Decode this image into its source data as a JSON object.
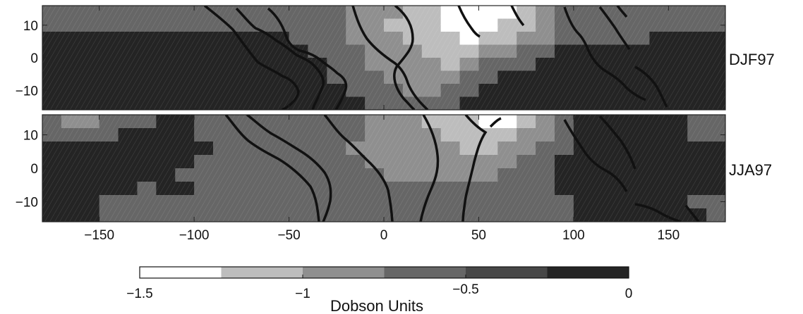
{
  "chart_data": {
    "type": "heatmap",
    "colorbar": {
      "label": "Dobson Units",
      "range": [
        -1.5,
        0
      ],
      "ticks": [
        -1.5,
        -1,
        -0.5,
        0
      ],
      "tick_labels": [
        "−1.5",
        "−1",
        "−0.5",
        "0"
      ],
      "levels": [
        -1.25,
        -1.0,
        -0.75,
        -0.5,
        -0.25
      ],
      "colors": [
        "#ffffff",
        "#bdbdbd",
        "#8f8f8f",
        "#666666",
        "#474747",
        "#242424"
      ]
    },
    "xlim": [
      -180,
      180
    ],
    "ylim": [
      -16,
      16
    ],
    "x_ticks": [
      -150,
      -100,
      -50,
      0,
      50,
      100,
      150
    ],
    "x_tick_labels": [
      "−150",
      "−100",
      "−50",
      "0",
      "50",
      "100",
      "150"
    ],
    "y_ticks": [
      10,
      0,
      -10
    ],
    "y_tick_labels": [
      "10",
      "0",
      "−10"
    ],
    "grid_step": {
      "lon": 10,
      "lat": 4
    },
    "panels": [
      {
        "label": "DJF97",
        "rows_lat_top_to_bottom": [
          16,
          12,
          8,
          4,
          0,
          -4,
          -8,
          -12
        ],
        "value_grid_top_to_bottom": [
          [
            -0.62,
            -0.62,
            -0.62,
            -0.62,
            -0.62,
            -0.62,
            -0.62,
            -0.62,
            -0.62,
            -0.62,
            -0.62,
            -0.62,
            -0.62,
            -0.62,
            -0.62,
            -0.62,
            -0.9,
            -0.9,
            -0.9,
            -1.1,
            -1.1,
            -1.4,
            -1.4,
            -1.4,
            -1.4,
            -1.1,
            -0.9,
            -0.62,
            -0.62,
            -0.62,
            -0.62,
            -0.62,
            -0.62,
            -0.62,
            -0.62,
            -0.62
          ],
          [
            -0.62,
            -0.62,
            -0.62,
            -0.62,
            -0.62,
            -0.62,
            -0.62,
            -0.62,
            -0.62,
            -0.62,
            -0.62,
            -0.62,
            -0.62,
            -0.62,
            -0.62,
            -0.62,
            -0.9,
            -0.9,
            -1.1,
            -1.1,
            -1.1,
            -1.4,
            -1.4,
            -1.4,
            -1.1,
            -1.1,
            -0.9,
            -0.62,
            -0.62,
            -0.62,
            -0.62,
            -0.62,
            -0.62,
            -0.62,
            -0.62,
            -0.62
          ],
          [
            -0.15,
            -0.15,
            -0.15,
            -0.15,
            -0.15,
            -0.15,
            -0.15,
            -0.15,
            -0.15,
            -0.15,
            -0.15,
            -0.15,
            -0.15,
            -0.62,
            -0.62,
            -0.62,
            -0.9,
            -0.9,
            -0.9,
            -1.1,
            -1.1,
            -1.1,
            -1.4,
            -1.1,
            -1.1,
            -0.9,
            -0.9,
            -0.62,
            -0.62,
            -0.62,
            -0.62,
            -0.62,
            -0.15,
            -0.15,
            -0.15,
            -0.15
          ],
          [
            -0.15,
            -0.15,
            -0.15,
            -0.15,
            -0.15,
            -0.15,
            -0.15,
            -0.15,
            -0.15,
            -0.15,
            -0.15,
            -0.15,
            -0.15,
            -0.15,
            -0.62,
            -0.62,
            -0.62,
            -0.9,
            -0.9,
            -0.9,
            -1.1,
            -1.1,
            -1.1,
            -0.9,
            -0.9,
            -0.62,
            -0.62,
            -0.15,
            -0.15,
            -0.15,
            -0.15,
            -0.15,
            -0.15,
            -0.15,
            -0.15,
            -0.15
          ],
          [
            -0.15,
            -0.15,
            -0.15,
            -0.15,
            -0.15,
            -0.15,
            -0.15,
            -0.15,
            -0.15,
            -0.15,
            -0.15,
            -0.15,
            -0.15,
            -0.15,
            -0.15,
            -0.62,
            -0.62,
            -0.9,
            -0.9,
            -0.9,
            -0.9,
            -1.1,
            -0.9,
            -0.62,
            -0.62,
            -0.62,
            -0.15,
            -0.15,
            -0.15,
            -0.15,
            -0.15,
            -0.15,
            -0.15,
            -0.15,
            -0.15,
            -0.15
          ],
          [
            -0.15,
            -0.15,
            -0.15,
            -0.15,
            -0.15,
            -0.15,
            -0.15,
            -0.15,
            -0.15,
            -0.15,
            -0.15,
            -0.15,
            -0.15,
            -0.15,
            -0.15,
            -0.62,
            -0.62,
            -0.62,
            -0.9,
            -0.9,
            -0.9,
            -0.9,
            -0.62,
            -0.62,
            -0.15,
            -0.15,
            -0.15,
            -0.15,
            -0.15,
            -0.15,
            -0.15,
            -0.15,
            -0.15,
            -0.15,
            -0.15,
            -0.15
          ],
          [
            -0.15,
            -0.15,
            -0.15,
            -0.15,
            -0.15,
            -0.15,
            -0.15,
            -0.15,
            -0.15,
            -0.15,
            -0.15,
            -0.15,
            -0.15,
            -0.15,
            -0.15,
            -0.15,
            -0.62,
            -0.62,
            -0.62,
            -0.9,
            -0.9,
            -0.62,
            -0.62,
            -0.15,
            -0.15,
            -0.15,
            -0.15,
            -0.15,
            -0.15,
            -0.15,
            -0.15,
            -0.15,
            -0.15,
            -0.15,
            -0.15,
            -0.15
          ],
          [
            -0.15,
            -0.15,
            -0.15,
            -0.15,
            -0.15,
            -0.15,
            -0.15,
            -0.15,
            -0.15,
            -0.15,
            -0.15,
            -0.15,
            -0.15,
            -0.15,
            -0.15,
            -0.15,
            -0.15,
            -0.62,
            -0.62,
            -0.62,
            -0.62,
            -0.62,
            -0.15,
            -0.15,
            -0.15,
            -0.15,
            -0.15,
            -0.15,
            -0.15,
            -0.15,
            -0.15,
            -0.15,
            -0.15,
            -0.15,
            -0.15,
            -0.15
          ]
        ]
      },
      {
        "label": "JJA97",
        "rows_lat_top_to_bottom": [
          16,
          12,
          8,
          4,
          0,
          -4,
          -8,
          -12
        ],
        "value_grid_top_to_bottom": [
          [
            -0.62,
            -0.9,
            -0.9,
            -0.62,
            -0.62,
            -0.62,
            -0.15,
            -0.15,
            -0.62,
            -0.62,
            -0.62,
            -0.62,
            -0.62,
            -0.62,
            -0.62,
            -0.62,
            -0.62,
            -0.9,
            -0.9,
            -0.9,
            -1.1,
            -1.1,
            -1.1,
            -1.4,
            -1.4,
            -1.1,
            -0.9,
            -0.62,
            -0.15,
            -0.15,
            -0.15,
            -0.15,
            -0.15,
            -0.15,
            -0.62,
            -0.62
          ],
          [
            -0.62,
            -0.62,
            -0.62,
            -0.62,
            -0.15,
            -0.15,
            -0.15,
            -0.15,
            -0.62,
            -0.62,
            -0.62,
            -0.62,
            -0.62,
            -0.62,
            -0.62,
            -0.62,
            -0.62,
            -0.9,
            -0.9,
            -0.9,
            -0.9,
            -1.1,
            -1.1,
            -1.1,
            -1.1,
            -0.9,
            -0.9,
            -0.62,
            -0.15,
            -0.15,
            -0.15,
            -0.15,
            -0.15,
            -0.15,
            -0.62,
            -0.62
          ],
          [
            -0.15,
            -0.15,
            -0.15,
            -0.15,
            -0.15,
            -0.15,
            -0.15,
            -0.15,
            -0.15,
            -0.62,
            -0.62,
            -0.62,
            -0.62,
            -0.62,
            -0.62,
            -0.62,
            -0.9,
            -0.9,
            -0.9,
            -0.9,
            -0.9,
            -0.9,
            -1.1,
            -1.1,
            -0.9,
            -0.9,
            -0.62,
            -0.62,
            -0.15,
            -0.15,
            -0.15,
            -0.15,
            -0.15,
            -0.15,
            -0.15,
            -0.15
          ],
          [
            -0.15,
            -0.15,
            -0.15,
            -0.15,
            -0.15,
            -0.15,
            -0.15,
            -0.15,
            -0.62,
            -0.62,
            -0.62,
            -0.62,
            -0.62,
            -0.62,
            -0.62,
            -0.62,
            -0.62,
            -0.9,
            -0.9,
            -0.9,
            -0.9,
            -0.9,
            -0.9,
            -0.9,
            -0.9,
            -0.62,
            -0.62,
            -0.15,
            -0.15,
            -0.15,
            -0.15,
            -0.15,
            -0.15,
            -0.15,
            -0.15,
            -0.15
          ],
          [
            -0.15,
            -0.15,
            -0.15,
            -0.15,
            -0.15,
            -0.15,
            -0.15,
            -0.62,
            -0.62,
            -0.62,
            -0.62,
            -0.62,
            -0.62,
            -0.62,
            -0.62,
            -0.62,
            -0.62,
            -0.62,
            -0.9,
            -0.9,
            -0.9,
            -0.9,
            -0.9,
            -0.9,
            -0.62,
            -0.62,
            -0.62,
            -0.15,
            -0.15,
            -0.15,
            -0.15,
            -0.15,
            -0.15,
            -0.15,
            -0.15,
            -0.15
          ],
          [
            -0.15,
            -0.15,
            -0.15,
            -0.15,
            -0.15,
            -0.62,
            -0.15,
            -0.15,
            -0.62,
            -0.62,
            -0.62,
            -0.62,
            -0.62,
            -0.62,
            -0.62,
            -0.62,
            -0.62,
            -0.62,
            -0.62,
            -0.62,
            -0.62,
            -0.62,
            -0.62,
            -0.62,
            -0.62,
            -0.62,
            -0.62,
            -0.15,
            -0.15,
            -0.15,
            -0.15,
            -0.15,
            -0.15,
            -0.15,
            -0.15,
            -0.15
          ],
          [
            -0.15,
            -0.15,
            -0.15,
            -0.62,
            -0.62,
            -0.62,
            -0.62,
            -0.62,
            -0.62,
            -0.62,
            -0.62,
            -0.62,
            -0.62,
            -0.62,
            -0.62,
            -0.62,
            -0.62,
            -0.62,
            -0.62,
            -0.62,
            -0.62,
            -0.62,
            -0.62,
            -0.62,
            -0.62,
            -0.62,
            -0.62,
            -0.62,
            -0.15,
            -0.15,
            -0.15,
            -0.15,
            -0.15,
            -0.15,
            -0.62,
            -0.62
          ],
          [
            -0.15,
            -0.15,
            -0.15,
            -0.62,
            -0.62,
            -0.62,
            -0.62,
            -0.62,
            -0.62,
            -0.62,
            -0.62,
            -0.62,
            -0.62,
            -0.62,
            -0.62,
            -0.62,
            -0.62,
            -0.62,
            -0.62,
            -0.62,
            -0.62,
            -0.62,
            -0.62,
            -0.62,
            -0.62,
            -0.62,
            -0.62,
            -0.62,
            -0.15,
            -0.15,
            -0.15,
            -0.15,
            -0.15,
            -0.15,
            -0.15,
            -0.62
          ]
        ]
      }
    ]
  }
}
